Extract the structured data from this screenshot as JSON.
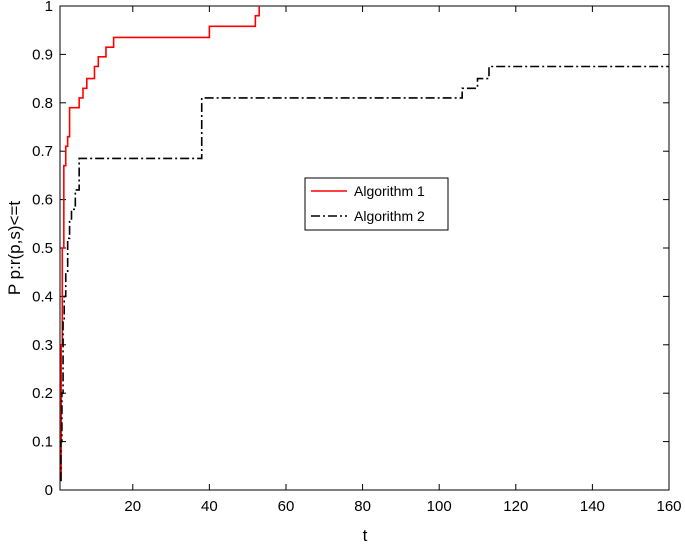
{
  "chart_data": {
    "type": "line",
    "step": true,
    "xlabel": "t",
    "ylabel": "P p:r(p,s)<=t",
    "xlim": [
      1,
      160
    ],
    "ylim": [
      0,
      1
    ],
    "xticks": [
      20,
      40,
      60,
      80,
      100,
      120,
      140,
      160
    ],
    "yticks": [
      0,
      0.1,
      0.2,
      0.3,
      0.4,
      0.5,
      0.6,
      0.7,
      0.8,
      0.9,
      1
    ],
    "grid": false,
    "legend_position": "center",
    "series": [
      {
        "name": "Algorithm 1",
        "color": "#ff0000",
        "style": "solid",
        "x": [
          1,
          1.3,
          1.6,
          2,
          2.5,
          3,
          3.5,
          5,
          6,
          7,
          8,
          9,
          10,
          11,
          12,
          13,
          14,
          15,
          38,
          40,
          51,
          52,
          53
        ],
        "y": [
          0.02,
          0.3,
          0.5,
          0.67,
          0.71,
          0.73,
          0.79,
          0.79,
          0.81,
          0.83,
          0.85,
          0.85,
          0.875,
          0.895,
          0.895,
          0.915,
          0.915,
          0.935,
          0.935,
          0.958,
          0.958,
          0.98,
          1.0
        ]
      },
      {
        "name": "Algorithm 2",
        "color": "#000000",
        "style": "dashdot",
        "x": [
          1,
          1.2,
          1.5,
          1.8,
          2.1,
          2.5,
          3,
          3.5,
          4,
          5,
          6,
          37,
          38,
          105,
          106,
          108,
          110,
          113,
          160
        ],
        "y": [
          0.02,
          0.1,
          0.2,
          0.35,
          0.4,
          0.45,
          0.52,
          0.56,
          0.58,
          0.62,
          0.685,
          0.685,
          0.81,
          0.81,
          0.83,
          0.83,
          0.85,
          0.875,
          0.875
        ]
      }
    ]
  }
}
